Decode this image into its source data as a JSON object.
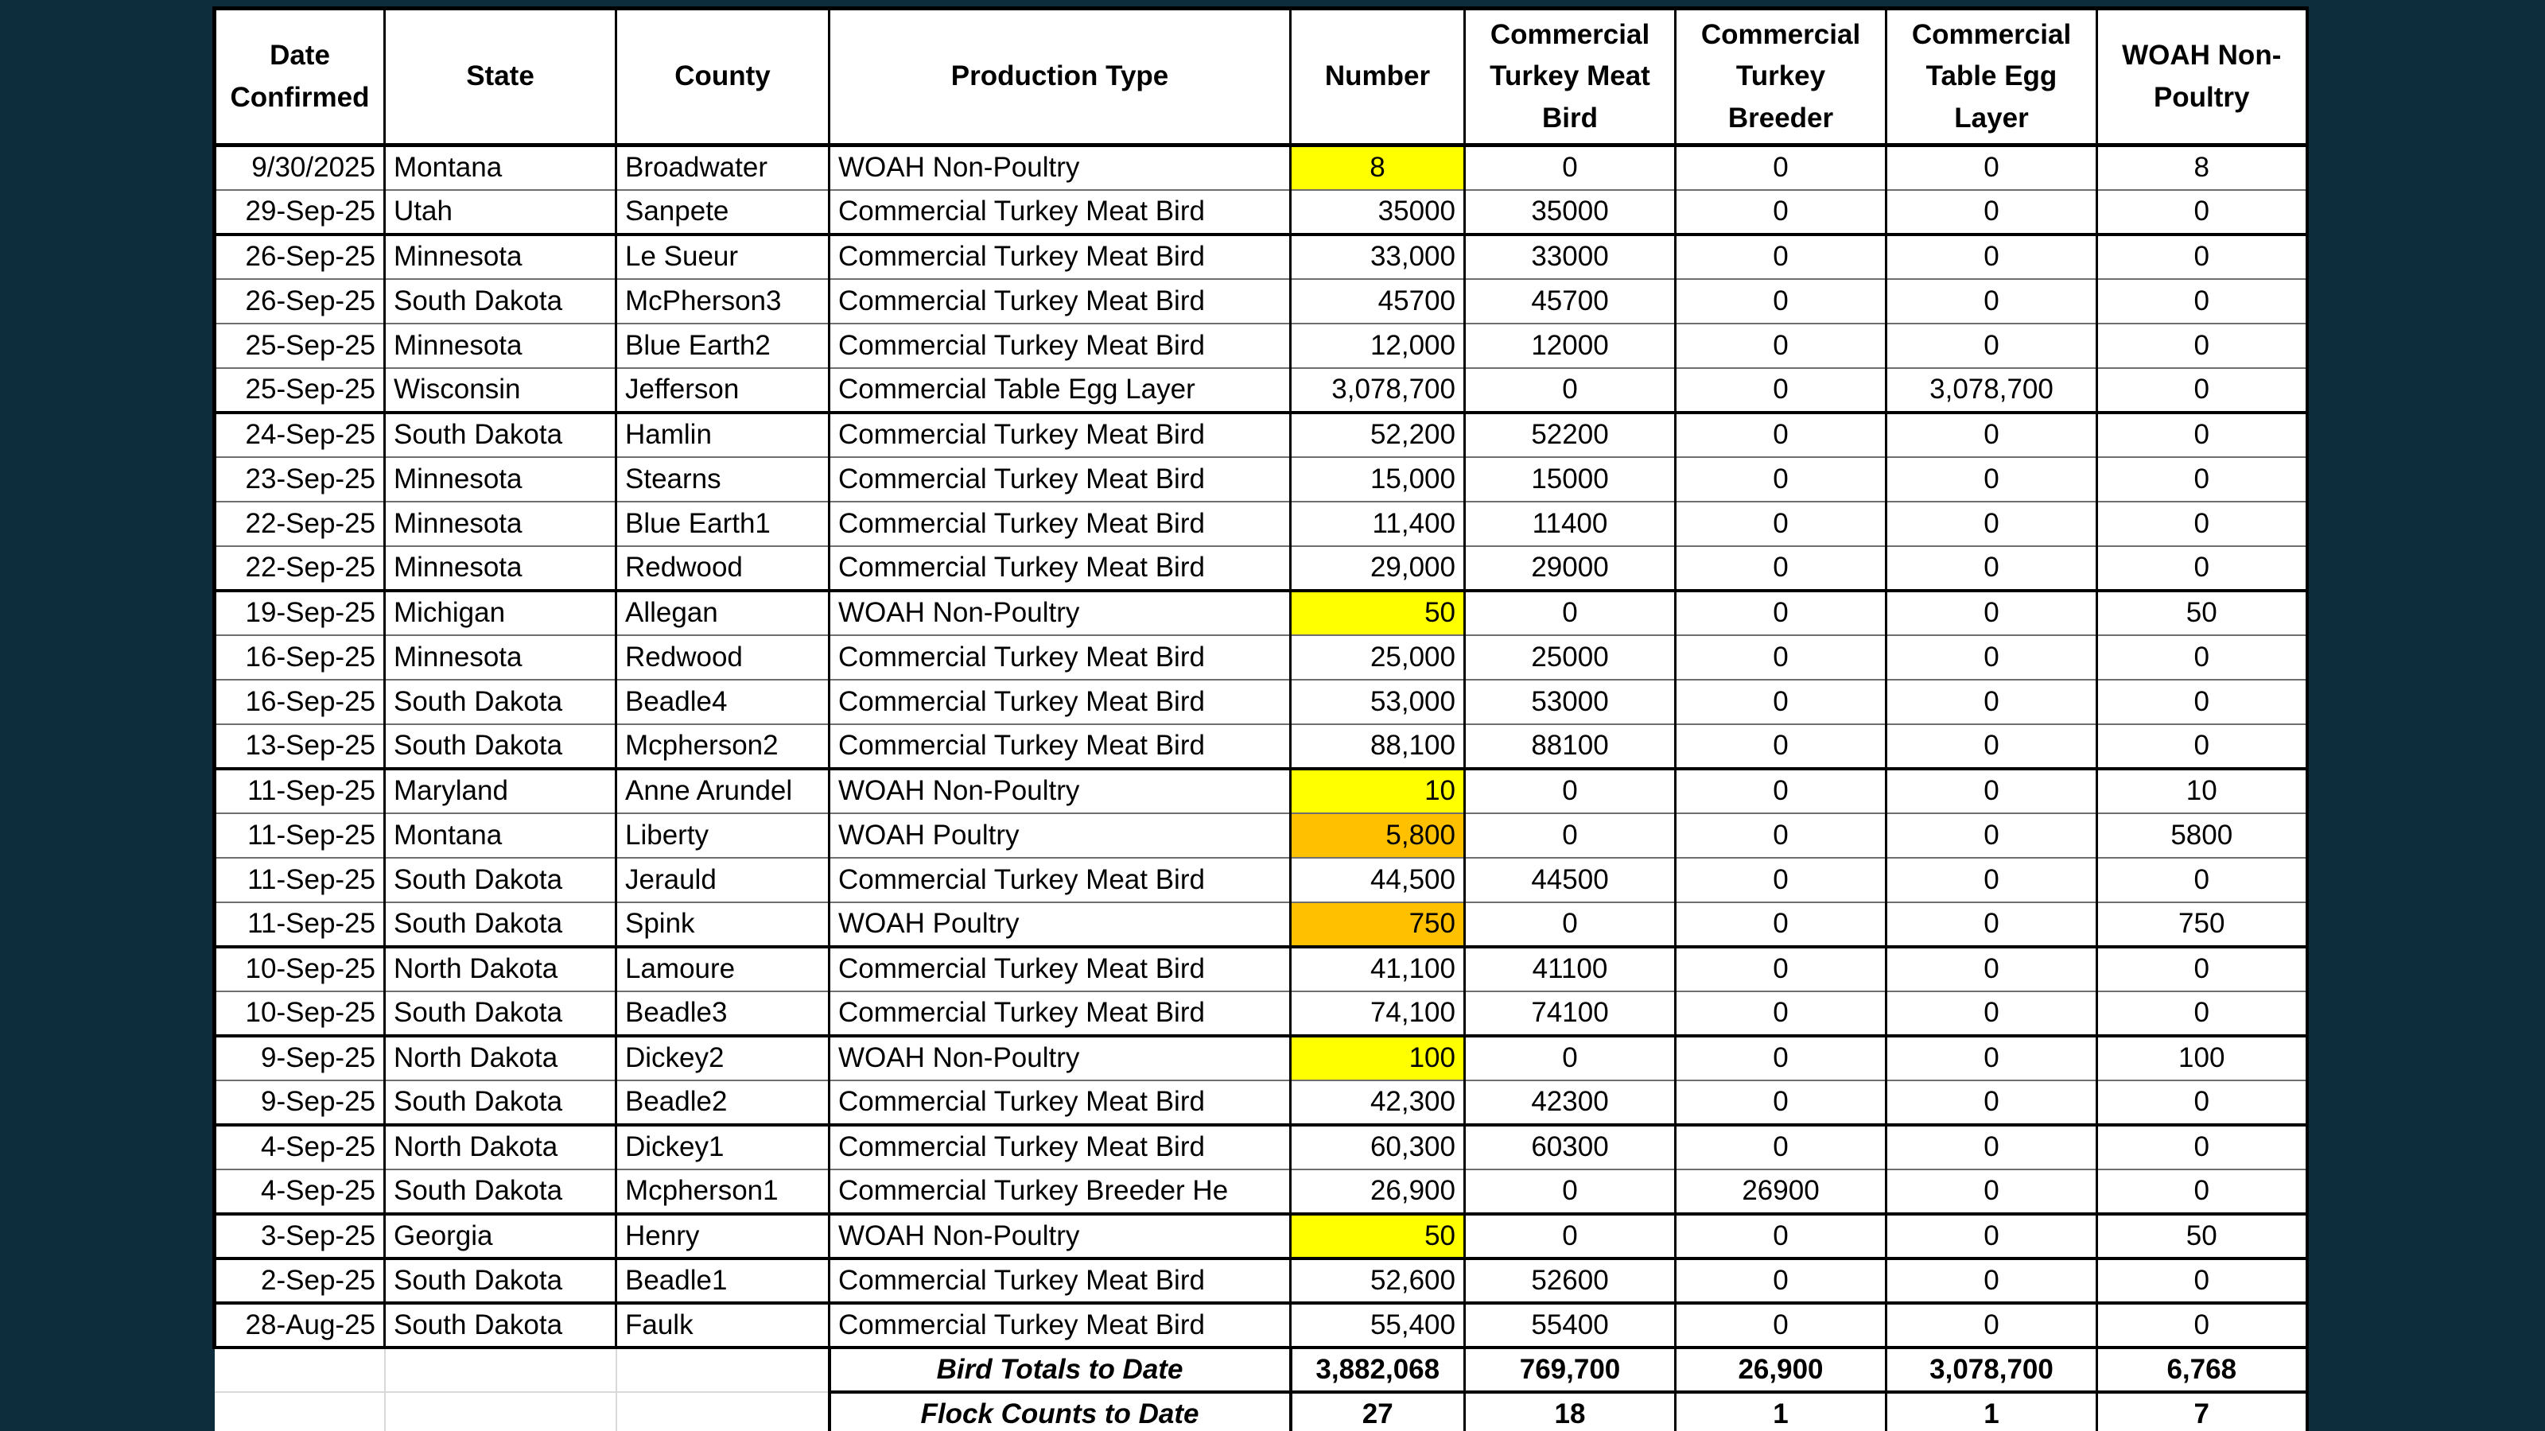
{
  "page": {
    "background_color": "#0e2d3c",
    "grid_line_color": "#d9d9d9"
  },
  "table": {
    "highlight_colors": {
      "yellow": "#FFFF00",
      "orange": "#FFC000"
    },
    "columns": [
      {
        "key": "date",
        "label": "Date Confirmed",
        "display": "Date\nConfirmed"
      },
      {
        "key": "state",
        "label": "State",
        "display": "State"
      },
      {
        "key": "county",
        "label": "County",
        "display": "County"
      },
      {
        "key": "prod",
        "label": "Production Type",
        "display": "Production Type"
      },
      {
        "key": "number",
        "label": "Number",
        "display": "Number"
      },
      {
        "key": "ctmb",
        "label": "Commercial Turkey Meat Bird",
        "display": "Commercial\nTurkey Meat\nBird"
      },
      {
        "key": "ctb",
        "label": "Commercial Turkey Breeder",
        "display": "Commercial\nTurkey\nBreeder"
      },
      {
        "key": "ctel",
        "label": "Commercial Table Egg Layer",
        "display": "Commercial\nTable Egg\nLayer"
      },
      {
        "key": "wnp",
        "label": "WOAH Non-Poultry",
        "display": "WOAH Non-\nPoultry"
      }
    ],
    "rows": [
      {
        "date": "9/30/2025",
        "state": "Montana",
        "county": "Broadwater",
        "prod": "WOAH Non-Poultry",
        "number": "8",
        "number_highlight": "yellow",
        "number_align": "center",
        "ctmb": "0",
        "ctb": "0",
        "ctel": "0",
        "wnp": "8",
        "thick_bottom": false
      },
      {
        "date": "29-Sep-25",
        "state": "Utah",
        "county": "Sanpete",
        "prod": "Commercial Turkey Meat Bird",
        "number": "35000",
        "number_highlight": null,
        "number_align": "right",
        "ctmb": "35000",
        "ctb": "0",
        "ctel": "0",
        "wnp": "0",
        "thick_bottom": true
      },
      {
        "date": "26-Sep-25",
        "state": "Minnesota",
        "county": "Le Sueur",
        "prod": "Commercial Turkey Meat Bird",
        "number": "33,000",
        "number_highlight": null,
        "number_align": "right",
        "ctmb": "33000",
        "ctb": "0",
        "ctel": "0",
        "wnp": "0",
        "thick_bottom": false
      },
      {
        "date": "26-Sep-25",
        "state": "South Dakota",
        "county": "McPherson3",
        "prod": "Commercial Turkey Meat Bird",
        "number": "45700",
        "number_highlight": null,
        "number_align": "right",
        "ctmb": "45700",
        "ctb": "0",
        "ctel": "0",
        "wnp": "0",
        "thick_bottom": false
      },
      {
        "date": "25-Sep-25",
        "state": "Minnesota",
        "county": "Blue Earth2",
        "prod": "Commercial Turkey Meat Bird",
        "number": "12,000",
        "number_highlight": null,
        "number_align": "right",
        "ctmb": "12000",
        "ctb": "0",
        "ctel": "0",
        "wnp": "0",
        "thick_bottom": false
      },
      {
        "date": "25-Sep-25",
        "state": "Wisconsin",
        "county": "Jefferson",
        "prod": "Commercial Table Egg Layer",
        "number": "3,078,700",
        "number_highlight": null,
        "number_align": "right",
        "ctmb": "0",
        "ctb": "0",
        "ctel": "3,078,700",
        "wnp": "0",
        "thick_bottom": true
      },
      {
        "date": "24-Sep-25",
        "state": "South Dakota",
        "county": "Hamlin",
        "prod": "Commercial Turkey Meat Bird",
        "number": "52,200",
        "number_highlight": null,
        "number_align": "right",
        "ctmb": "52200",
        "ctb": "0",
        "ctel": "0",
        "wnp": "0",
        "thick_bottom": false
      },
      {
        "date": "23-Sep-25",
        "state": "Minnesota",
        "county": "Stearns",
        "prod": "Commercial Turkey Meat Bird",
        "number": "15,000",
        "number_highlight": null,
        "number_align": "right",
        "ctmb": "15000",
        "ctb": "0",
        "ctel": "0",
        "wnp": "0",
        "thick_bottom": false
      },
      {
        "date": "22-Sep-25",
        "state": "Minnesota",
        "county": "Blue Earth1",
        "prod": "Commercial Turkey Meat Bird",
        "number": "11,400",
        "number_highlight": null,
        "number_align": "right",
        "ctmb": "11400",
        "ctb": "0",
        "ctel": "0",
        "wnp": "0",
        "thick_bottom": false
      },
      {
        "date": "22-Sep-25",
        "state": "Minnesota",
        "county": "Redwood",
        "prod": "Commercial Turkey Meat Bird",
        "number": "29,000",
        "number_highlight": null,
        "number_align": "right",
        "ctmb": "29000",
        "ctb": "0",
        "ctel": "0",
        "wnp": "0",
        "thick_bottom": true
      },
      {
        "date": "19-Sep-25",
        "state": "Michigan",
        "county": "Allegan",
        "prod": "WOAH Non-Poultry",
        "number": "50",
        "number_highlight": "yellow",
        "number_align": "right",
        "ctmb": "0",
        "ctb": "0",
        "ctel": "0",
        "wnp": "50",
        "thick_bottom": false
      },
      {
        "date": "16-Sep-25",
        "state": "Minnesota",
        "county": "Redwood",
        "prod": "Commercial Turkey Meat Bird",
        "number": "25,000",
        "number_highlight": null,
        "number_align": "right",
        "ctmb": "25000",
        "ctb": "0",
        "ctel": "0",
        "wnp": "0",
        "thick_bottom": false
      },
      {
        "date": "16-Sep-25",
        "state": "South Dakota",
        "county": "Beadle4",
        "prod": "Commercial Turkey Meat Bird",
        "number": "53,000",
        "number_highlight": null,
        "number_align": "right",
        "ctmb": "53000",
        "ctb": "0",
        "ctel": "0",
        "wnp": "0",
        "thick_bottom": false
      },
      {
        "date": "13-Sep-25",
        "state": "South Dakota",
        "county": "Mcpherson2",
        "prod": "Commercial Turkey Meat Bird",
        "number": "88,100",
        "number_highlight": null,
        "number_align": "right",
        "ctmb": "88100",
        "ctb": "0",
        "ctel": "0",
        "wnp": "0",
        "thick_bottom": true
      },
      {
        "date": "11-Sep-25",
        "state": "Maryland",
        "county": "Anne Arundel",
        "prod": "WOAH Non-Poultry",
        "number": "10",
        "number_highlight": "yellow",
        "number_align": "right",
        "ctmb": "0",
        "ctb": "0",
        "ctel": "0",
        "wnp": "10",
        "thick_bottom": false
      },
      {
        "date": "11-Sep-25",
        "state": "Montana",
        "county": "Liberty",
        "prod": "WOAH Poultry",
        "number": "5,800",
        "number_highlight": "orange",
        "number_align": "right",
        "ctmb": "0",
        "ctb": "0",
        "ctel": "0",
        "wnp": "5800",
        "thick_bottom": false
      },
      {
        "date": "11-Sep-25",
        "state": "South Dakota",
        "county": "Jerauld",
        "prod": "Commercial Turkey Meat Bird",
        "number": "44,500",
        "number_highlight": null,
        "number_align": "right",
        "ctmb": "44500",
        "ctb": "0",
        "ctel": "0",
        "wnp": "0",
        "thick_bottom": false
      },
      {
        "date": "11-Sep-25",
        "state": "South Dakota",
        "county": "Spink",
        "prod": "WOAH Poultry",
        "number": "750",
        "number_highlight": "orange",
        "number_align": "right",
        "ctmb": "0",
        "ctb": "0",
        "ctel": "0",
        "wnp": "750",
        "thick_bottom": true
      },
      {
        "date": "10-Sep-25",
        "state": "North Dakota",
        "county": "Lamoure",
        "prod": "Commercial Turkey Meat Bird",
        "number": "41,100",
        "number_highlight": null,
        "number_align": "right",
        "ctmb": "41100",
        "ctb": "0",
        "ctel": "0",
        "wnp": "0",
        "thick_bottom": false
      },
      {
        "date": "10-Sep-25",
        "state": "South Dakota",
        "county": "Beadle3",
        "prod": "Commercial Turkey Meat Bird",
        "number": "74,100",
        "number_highlight": null,
        "number_align": "right",
        "ctmb": "74100",
        "ctb": "0",
        "ctel": "0",
        "wnp": "0",
        "thick_bottom": true
      },
      {
        "date": "9-Sep-25",
        "state": "North Dakota",
        "county": "Dickey2",
        "prod": "WOAH Non-Poultry",
        "number": "100",
        "number_highlight": "yellow",
        "number_align": "right",
        "ctmb": "0",
        "ctb": "0",
        "ctel": "0",
        "wnp": "100",
        "thick_bottom": false
      },
      {
        "date": "9-Sep-25",
        "state": "South Dakota",
        "county": "Beadle2",
        "prod": "Commercial Turkey Meat Bird",
        "number": "42,300",
        "number_highlight": null,
        "number_align": "right",
        "ctmb": "42300",
        "ctb": "0",
        "ctel": "0",
        "wnp": "0",
        "thick_bottom": true
      },
      {
        "date": "4-Sep-25",
        "state": "North Dakota",
        "county": "Dickey1",
        "prod": "Commercial Turkey Meat Bird",
        "number": "60,300",
        "number_highlight": null,
        "number_align": "right",
        "ctmb": "60300",
        "ctb": "0",
        "ctel": "0",
        "wnp": "0",
        "thick_bottom": false
      },
      {
        "date": "4-Sep-25",
        "state": "South Dakota",
        "county": "Mcpherson1",
        "prod": "Commercial Turkey Breeder He",
        "number": "26,900",
        "number_highlight": null,
        "number_align": "right",
        "ctmb": "0",
        "ctb": "26900",
        "ctel": "0",
        "wnp": "0",
        "thick_bottom": true
      },
      {
        "date": "3-Sep-25",
        "state": "Georgia",
        "county": "Henry",
        "prod": "WOAH Non-Poultry",
        "number": "50",
        "number_highlight": "yellow",
        "number_align": "right",
        "ctmb": "0",
        "ctb": "0",
        "ctel": "0",
        "wnp": "50",
        "thick_bottom": true
      },
      {
        "date": "2-Sep-25",
        "state": "South Dakota",
        "county": "Beadle1",
        "prod": "Commercial Turkey Meat Bird",
        "number": "52,600",
        "number_highlight": null,
        "number_align": "right",
        "ctmb": "52600",
        "ctb": "0",
        "ctel": "0",
        "wnp": "0",
        "thick_bottom": true
      },
      {
        "date": "28-Aug-25",
        "state": "South Dakota",
        "county": "Faulk",
        "prod": "Commercial Turkey Meat Bird",
        "number": "55,400",
        "number_highlight": null,
        "number_align": "right",
        "ctmb": "55400",
        "ctb": "0",
        "ctel": "0",
        "wnp": "0",
        "thick_bottom": true
      }
    ],
    "totals": [
      {
        "label": "Bird Totals to Date",
        "number": "3,882,068",
        "ctmb": "769,700",
        "ctb": "26,900",
        "ctel": "3,078,700",
        "wnp": "6,768"
      },
      {
        "label": "Flock Counts to Date",
        "number": "27",
        "ctmb": "18",
        "ctb": "1",
        "ctel": "1",
        "wnp": "7"
      }
    ]
  }
}
